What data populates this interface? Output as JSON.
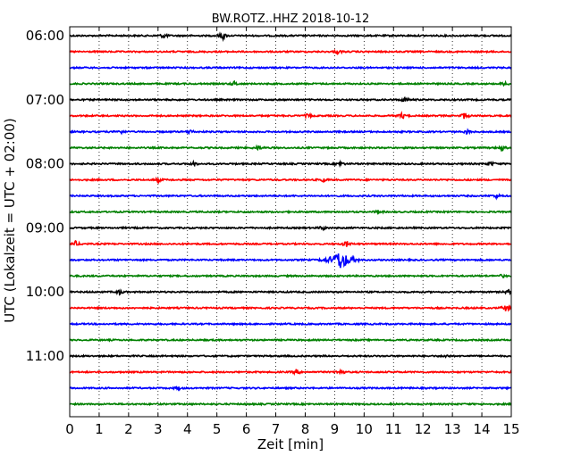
{
  "chart_data": {
    "type": "line",
    "title": "BW.ROTZ..HHZ 2018-10-12",
    "xlabel": "Zeit  [min]",
    "ylabel": "UTC (Lokalzeit = UTC + 02:00)",
    "xlim": [
      0,
      15
    ],
    "x_ticks": [
      "0",
      "1",
      "2",
      "3",
      "4",
      "5",
      "6",
      "7",
      "8",
      "9",
      "10",
      "11",
      "12",
      "13",
      "14",
      "15"
    ],
    "y_ticks": [
      "06:00",
      "07:00",
      "08:00",
      "09:00",
      "10:00",
      "11:00"
    ],
    "grid": "vertical dotted",
    "trace_colors": [
      "#000000",
      "#ff0000",
      "#0000ff",
      "#008000"
    ],
    "traces": [
      {
        "start": "06:00",
        "events": [
          {
            "x": 3.2,
            "amp": 0.25
          },
          {
            "x": 5.2,
            "amp": 0.35
          }
        ]
      },
      {
        "start": "06:15",
        "events": [
          {
            "x": 9.1,
            "amp": 0.2
          }
        ]
      },
      {
        "start": "06:30",
        "events": []
      },
      {
        "start": "06:45",
        "events": [
          {
            "x": 5.6,
            "amp": 0.25
          },
          {
            "x": 14.8,
            "amp": 0.2
          }
        ]
      },
      {
        "start": "07:00",
        "events": [
          {
            "x": 11.4,
            "amp": 0.25
          }
        ]
      },
      {
        "start": "07:15",
        "events": [
          {
            "x": 8.1,
            "amp": 0.2
          },
          {
            "x": 11.3,
            "amp": 0.3
          },
          {
            "x": 13.4,
            "amp": 0.3
          }
        ]
      },
      {
        "start": "07:30",
        "events": [
          {
            "x": 1.7,
            "amp": 0.25
          },
          {
            "x": 4.1,
            "amp": 0.2
          },
          {
            "x": 13.5,
            "amp": 0.2
          }
        ]
      },
      {
        "start": "07:45",
        "events": [
          {
            "x": 6.4,
            "amp": 0.2
          },
          {
            "x": 14.7,
            "amp": 0.25
          }
        ]
      },
      {
        "start": "08:00",
        "events": [
          {
            "x": 4.2,
            "amp": 0.2
          },
          {
            "x": 9.2,
            "amp": 0.2
          },
          {
            "x": 14.3,
            "amp": 0.25
          }
        ]
      },
      {
        "start": "08:15",
        "events": [
          {
            "x": 3.0,
            "amp": 0.2
          },
          {
            "x": 8.6,
            "amp": 0.2
          }
        ]
      },
      {
        "start": "08:30",
        "events": [
          {
            "x": 14.5,
            "amp": 0.2
          }
        ]
      },
      {
        "start": "08:45",
        "events": [
          {
            "x": 10.5,
            "amp": 0.15
          }
        ]
      },
      {
        "start": "09:00",
        "events": [
          {
            "x": 8.6,
            "amp": 0.2
          }
        ]
      },
      {
        "start": "09:15",
        "events": [
          {
            "x": 0.2,
            "amp": 0.25
          },
          {
            "x": 9.4,
            "amp": 0.3
          }
        ]
      },
      {
        "start": "09:30",
        "events": [
          {
            "x": 9.2,
            "amp": 1.0
          }
        ]
      },
      {
        "start": "09:45",
        "events": [
          {
            "x": 14.7,
            "amp": 0.15
          }
        ]
      },
      {
        "start": "10:00",
        "events": [
          {
            "x": 1.7,
            "amp": 0.25
          },
          {
            "x": 14.9,
            "amp": 0.2
          }
        ]
      },
      {
        "start": "10:15",
        "events": [
          {
            "x": 14.8,
            "amp": 0.3
          }
        ]
      },
      {
        "start": "10:30",
        "events": []
      },
      {
        "start": "10:45",
        "events": []
      },
      {
        "start": "11:00",
        "events": [
          {
            "x": 12.8,
            "amp": 0.15
          }
        ]
      },
      {
        "start": "11:15",
        "events": [
          {
            "x": 7.7,
            "amp": 0.25
          },
          {
            "x": 9.2,
            "amp": 0.3
          }
        ]
      },
      {
        "start": "11:30",
        "events": [
          {
            "x": 3.7,
            "amp": 0.15
          }
        ]
      },
      {
        "start": "11:45",
        "events": []
      }
    ]
  }
}
